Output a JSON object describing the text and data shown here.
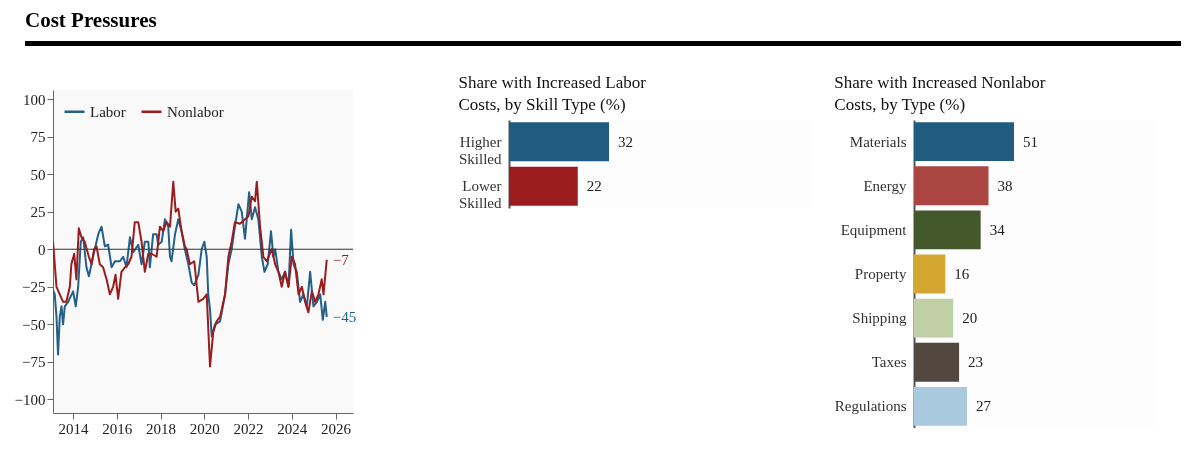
{
  "chart_data": [
    {
      "type": "line",
      "title": "Cost Pressures",
      "xlim": [
        2013.08,
        2026.8
      ],
      "xticks": [
        2014,
        2016,
        2018,
        2020,
        2022,
        2024,
        2026
      ],
      "ylim": [
        -109,
        106
      ],
      "yticks": [
        -100,
        -75,
        -50,
        -25,
        0,
        25,
        50,
        75,
        100
      ],
      "grid": false,
      "legend": "top left",
      "series": [
        {
          "name": "Labor",
          "color": "#236089",
          "x": [
            2013.08,
            2013.16,
            2013.24,
            2013.31,
            2013.39,
            2013.47,
            2013.54,
            2013.62,
            2013.77,
            2014.0,
            2014.12,
            2014.23,
            2014.35,
            2014.46,
            2014.61,
            2014.72,
            2014.84,
            2014.99,
            2015.15,
            2015.3,
            2015.45,
            2015.6,
            2015.76,
            2015.91,
            2016.14,
            2016.29,
            2016.44,
            2016.6,
            2016.75,
            2016.98,
            2017.13,
            2017.28,
            2017.44,
            2017.51,
            2017.66,
            2017.82,
            2017.89,
            2018.05,
            2018.2,
            2018.35,
            2018.43,
            2018.5,
            2018.66,
            2018.81,
            2018.96,
            2019.11,
            2019.27,
            2019.42,
            2019.54,
            2019.73,
            2019.88,
            2020.0,
            2020.11,
            2020.18,
            2020.26,
            2020.34,
            2020.49,
            2020.72,
            2020.95,
            2021.1,
            2021.25,
            2021.4,
            2021.56,
            2021.71,
            2021.86,
            2021.94,
            2022.05,
            2022.17,
            2022.32,
            2022.47,
            2022.63,
            2022.75,
            2022.9,
            2023.05,
            2023.16,
            2023.24,
            2023.39,
            2023.54,
            2023.69,
            2023.85,
            2023.97,
            2024.08,
            2024.23,
            2024.38,
            2024.53,
            2024.69,
            2024.84,
            2024.99,
            2025.15,
            2025.3,
            2025.42,
            2025.53,
            2025.6
          ],
          "values": [
            -27,
            -30,
            -45,
            -70,
            -45,
            -38,
            -50,
            -38,
            -35,
            -28,
            -38,
            -25,
            5,
            8,
            -12,
            -18,
            -10,
            0,
            10,
            15,
            2,
            3,
            -12,
            -8,
            -8,
            -5,
            -12,
            8,
            -2,
            3,
            -10,
            5,
            5,
            -12,
            10,
            10,
            3,
            5,
            20,
            15,
            -5,
            -8,
            10,
            20,
            12,
            0,
            -10,
            -22,
            -24,
            -17,
            0,
            5,
            -5,
            -30,
            -40,
            -58,
            -50,
            -48,
            -30,
            -10,
            0,
            15,
            30,
            25,
            7,
            20,
            38,
            20,
            28,
            20,
            -5,
            -15,
            -10,
            12,
            -5,
            0,
            -15,
            -20,
            -15,
            -25,
            13,
            -10,
            -15,
            -35,
            -30,
            -38,
            -15,
            -38,
            -35,
            -30,
            -47,
            -35,
            -45
          ]
        },
        {
          "name": "Nonlabor",
          "color": "#9b1c1c",
          "x": [
            2013.08,
            2013.24,
            2013.39,
            2013.54,
            2013.69,
            2013.85,
            2013.92,
            2014.05,
            2014.15,
            2014.26,
            2014.38,
            2014.53,
            2014.72,
            2014.84,
            2014.96,
            2015.07,
            2015.22,
            2015.37,
            2015.53,
            2015.68,
            2015.83,
            2015.94,
            2016.06,
            2016.21,
            2016.37,
            2016.52,
            2016.67,
            2016.82,
            2016.98,
            2017.13,
            2017.28,
            2017.44,
            2017.59,
            2017.82,
            2017.97,
            2018.12,
            2018.27,
            2018.43,
            2018.58,
            2018.69,
            2018.81,
            2018.96,
            2019.11,
            2019.19,
            2019.34,
            2019.54,
            2019.73,
            2019.95,
            2020.11,
            2020.26,
            2020.41,
            2020.56,
            2020.72,
            2020.95,
            2021.1,
            2021.25,
            2021.4,
            2021.63,
            2021.86,
            2022.02,
            2022.17,
            2022.32,
            2022.4,
            2022.55,
            2022.7,
            2022.85,
            2023.08,
            2023.24,
            2023.39,
            2023.54,
            2023.69,
            2023.85,
            2024.0,
            2024.15,
            2024.31,
            2024.46,
            2024.61,
            2024.76,
            2024.92,
            2025.07,
            2025.22,
            2025.37,
            2025.45,
            2025.6
          ],
          "values": [
            5,
            -25,
            -30,
            -35,
            -35,
            -25,
            -10,
            -3,
            -20,
            14,
            8,
            5,
            -5,
            -10,
            0,
            2,
            -10,
            -12,
            -20,
            -30,
            -25,
            -17,
            -33,
            -15,
            -12,
            -10,
            -5,
            18,
            18,
            5,
            -15,
            -3,
            -3,
            -5,
            15,
            12,
            18,
            15,
            45,
            25,
            27,
            12,
            2,
            0,
            -10,
            -8,
            -35,
            -33,
            -30,
            -78,
            -55,
            -48,
            -45,
            -30,
            -5,
            5,
            18,
            17,
            20,
            22,
            35,
            32,
            45,
            15,
            -5,
            -8,
            0,
            -10,
            -15,
            -25,
            -15,
            -25,
            -5,
            -10,
            -30,
            -25,
            -35,
            -42,
            -28,
            -35,
            -30,
            -20,
            -30,
            -7
          ]
        }
      ],
      "ref_lines": [
        {
          "axis": "y",
          "value": 0
        }
      ],
      "annotations": [
        {
          "text": "−7",
          "x": 2025.6,
          "y": -7
        },
        {
          "text": "−45",
          "x": 2025.6,
          "y": -45
        }
      ]
    },
    {
      "type": "bar",
      "orientation": "horizontal",
      "title": "Share with Increased Labor Costs, by Skill Type (%)",
      "categories": [
        "Higher Skilled",
        "Lower Skilled"
      ],
      "values": [
        32,
        22
      ],
      "colors": [
        "#1f5c80",
        "#9b1c1c"
      ],
      "data_labels": true
    },
    {
      "type": "bar",
      "orientation": "horizontal",
      "title": "Share with Increased Nonlabor Costs, by Type (%)",
      "categories": [
        "Materials",
        "Energy",
        "Equipment",
        "Property",
        "Shipping",
        "Taxes",
        "Regulations"
      ],
      "values": [
        51,
        38,
        34,
        16,
        20,
        23,
        27
      ],
      "colors": [
        "#1f5c80",
        "#ab4542",
        "#43592c",
        "#d4a733",
        "#c0cfa5",
        "#524840",
        "#a9c9df"
      ],
      "data_labels": true
    }
  ]
}
